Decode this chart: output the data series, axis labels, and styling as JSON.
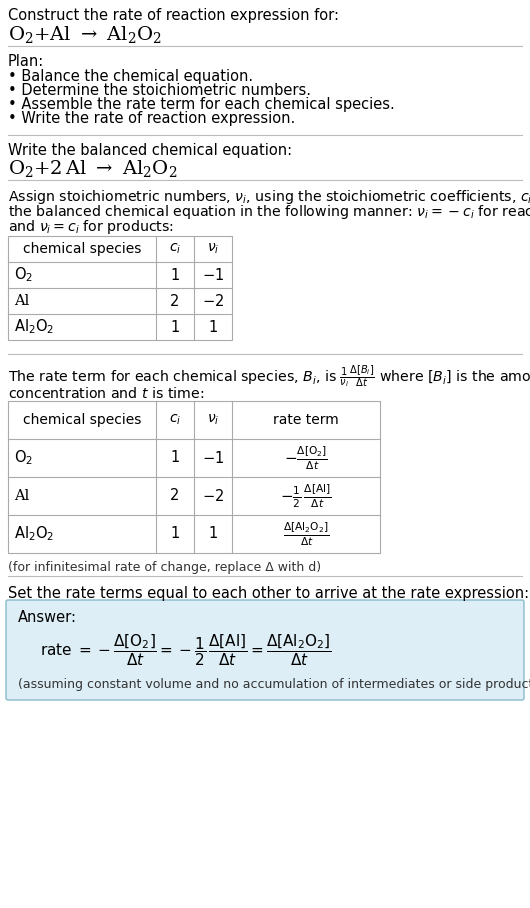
{
  "bg_color": "#ffffff",
  "answer_bg_color": "#ddeef6",
  "answer_border_color": "#88bbcc",
  "separator_color": "#bbbbbb",
  "text_color": "#000000",
  "plan_items": [
    "• Balance the chemical equation.",
    "• Determine the stoichiometric numbers.",
    "• Assemble the rate term for each chemical species.",
    "• Write the rate of reaction expression."
  ],
  "infinitesimal_note": "(for infinitesimal rate of change, replace Δ with d)",
  "set_rate_text": "Set the rate terms equal to each other to arrive at the rate expression:",
  "footnote": "(assuming constant volume and no accumulation of intermediates or side products)"
}
